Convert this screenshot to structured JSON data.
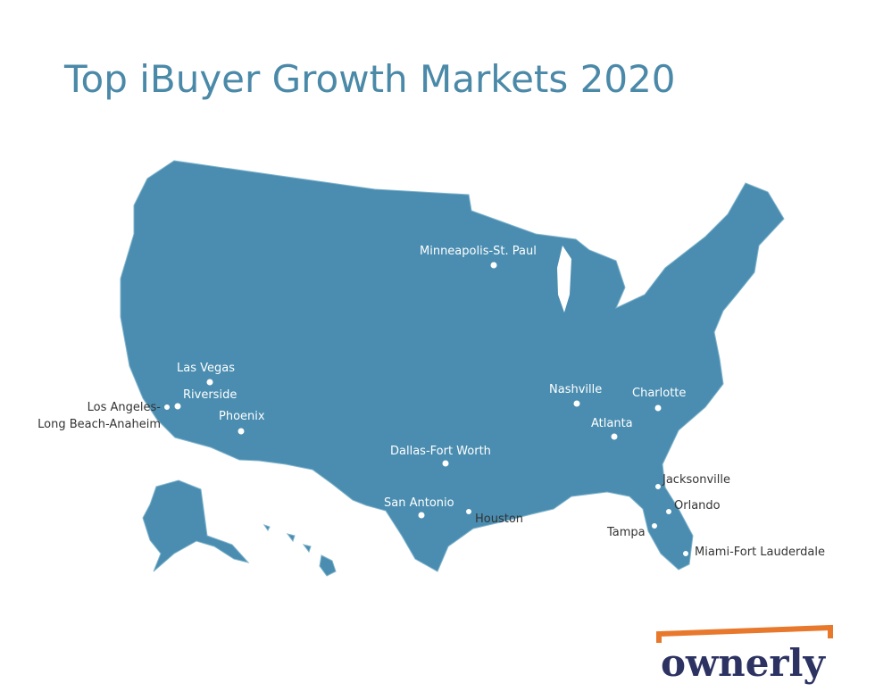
{
  "title": "Top iBuyer Growth Markets 2020",
  "cities": [
    {
      "lines": [
        "Minneapolis-St. Paul"
      ]
    },
    {
      "lines": [
        "Las Vegas"
      ]
    },
    {
      "lines": [
        "Riverside"
      ]
    },
    {
      "lines": [
        "Los Angeles-",
        "Long Beach-Anaheim"
      ]
    },
    {
      "lines": [
        "Phoenix"
      ]
    },
    {
      "lines": [
        "Dallas-Fort Worth"
      ]
    },
    {
      "lines": [
        "San Antonio"
      ]
    },
    {
      "lines": [
        "Houston"
      ]
    },
    {
      "lines": [
        "Nashville"
      ]
    },
    {
      "lines": [
        "Charlotte"
      ]
    },
    {
      "lines": [
        "Atlanta"
      ]
    },
    {
      "lines": [
        "Jacksonville"
      ]
    },
    {
      "lines": [
        "Orlando"
      ]
    },
    {
      "lines": [
        "Tampa"
      ]
    },
    {
      "lines": [
        "Miami-Fort Lauderdale"
      ]
    }
  ],
  "logo": "ownerly"
}
